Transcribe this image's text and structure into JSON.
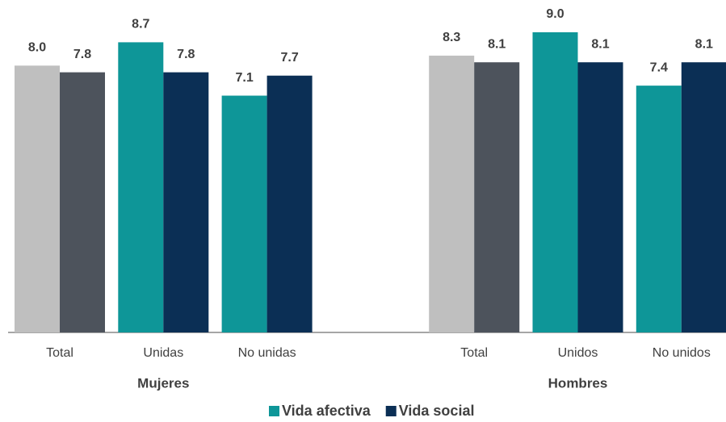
{
  "chart_data": {
    "type": "bar",
    "categories": [
      "Total",
      "Unidas",
      "No unidas",
      null,
      "Total",
      "Unidos",
      "No unidos"
    ],
    "groups": [
      "Mujeres",
      "Hombres"
    ],
    "series": [
      {
        "name": "Vida afectiva",
        "color": "#0e9698",
        "colors": [
          "#bfbfbf",
          "#0e9698",
          "#0e9698",
          null,
          "#bfbfbf",
          "#0e9698",
          "#0e9698"
        ],
        "values": [
          8.0,
          8.7,
          7.1,
          null,
          8.3,
          9.0,
          7.4
        ],
        "value_labels": [
          "8.0",
          "8.7",
          "7.1",
          null,
          "8.3",
          "9.0",
          "7.4"
        ]
      },
      {
        "name": "Vida social",
        "color": "#0b2f55",
        "colors": [
          "#4d535c",
          "#0b2f55",
          "#0b2f55",
          null,
          "#4d535c",
          "#0b2f55",
          "#0b2f55"
        ],
        "values": [
          7.8,
          7.8,
          7.7,
          null,
          8.1,
          8.1,
          8.1
        ],
        "value_labels": [
          "7.8",
          "7.8",
          "7.7",
          null,
          "8.1",
          "8.1",
          "8.1"
        ]
      }
    ],
    "ylim": [
      0,
      9
    ]
  }
}
